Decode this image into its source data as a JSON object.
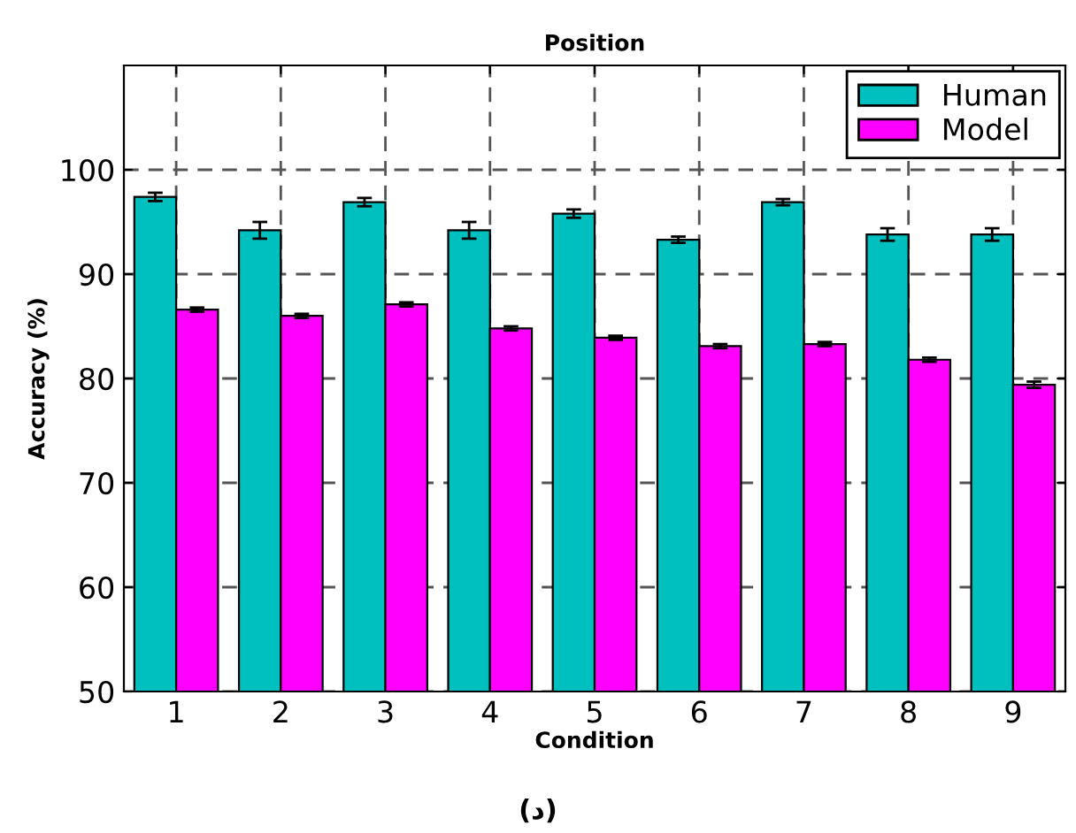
{
  "chart_data": {
    "type": "bar",
    "title": "Position",
    "xlabel": "Condition",
    "ylabel": "Accuracy (%)",
    "categories": [
      "1",
      "2",
      "3",
      "4",
      "5",
      "6",
      "7",
      "8",
      "9"
    ],
    "series": [
      {
        "name": "Human",
        "color": "#00bfbf",
        "values": [
          97.4,
          94.2,
          96.9,
          94.2,
          95.8,
          93.3,
          96.9,
          93.8,
          93.8
        ],
        "errors": [
          0.4,
          0.8,
          0.4,
          0.8,
          0.4,
          0.3,
          0.3,
          0.6,
          0.6
        ]
      },
      {
        "name": "Model",
        "color": "#ff00ff",
        "values": [
          86.6,
          86.0,
          87.1,
          84.8,
          83.9,
          83.1,
          83.3,
          81.8,
          79.4
        ],
        "errors": [
          0.2,
          0.2,
          0.2,
          0.2,
          0.2,
          0.2,
          0.2,
          0.2,
          0.3
        ]
      }
    ],
    "ylim": [
      50,
      110
    ],
    "yticks": [
      50,
      60,
      70,
      80,
      90,
      100
    ],
    "grid": true,
    "legend": "top right",
    "annotations": [
      "(د)"
    ]
  }
}
